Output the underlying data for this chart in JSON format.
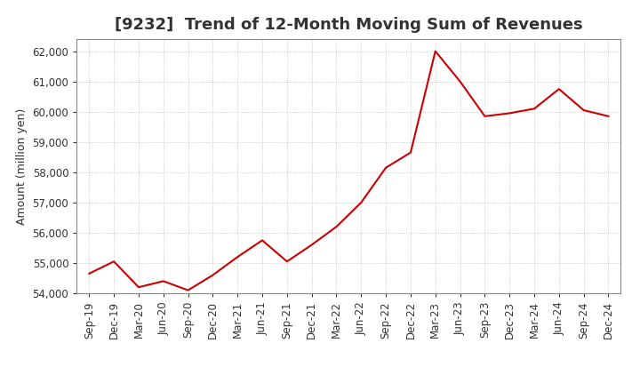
{
  "title": "[9232]  Trend of 12-Month Moving Sum of Revenues",
  "ylabel": "Amount (million yen)",
  "line_color": "#cc0000",
  "background_color": "#ffffff",
  "plot_bg_color": "#ffffff",
  "grid_color": "#aaaaaa",
  "xlabels": [
    "Sep-19",
    "Dec-19",
    "Mar-20",
    "Jun-20",
    "Sep-20",
    "Dec-20",
    "Mar-21",
    "Jun-21",
    "Sep-21",
    "Dec-21",
    "Mar-22",
    "Jun-22",
    "Sep-22",
    "Dec-22",
    "Mar-23",
    "Jun-23",
    "Sep-23",
    "Dec-23",
    "Mar-24",
    "Jun-24",
    "Sep-24",
    "Dec-24"
  ],
  "values": [
    54650,
    55050,
    54200,
    54400,
    54100,
    54600,
    55200,
    55750,
    55050,
    55600,
    56200,
    57000,
    58150,
    58650,
    62000,
    61000,
    59850,
    59950,
    60100,
    60750,
    60050,
    59850
  ],
  "ylim": [
    54000,
    62400
  ],
  "yticks": [
    54000,
    55000,
    56000,
    57000,
    58000,
    59000,
    60000,
    61000,
    62000
  ],
  "title_fontsize": 13,
  "title_color": "#333333",
  "tick_fontsize": 8.5,
  "ylabel_fontsize": 9
}
